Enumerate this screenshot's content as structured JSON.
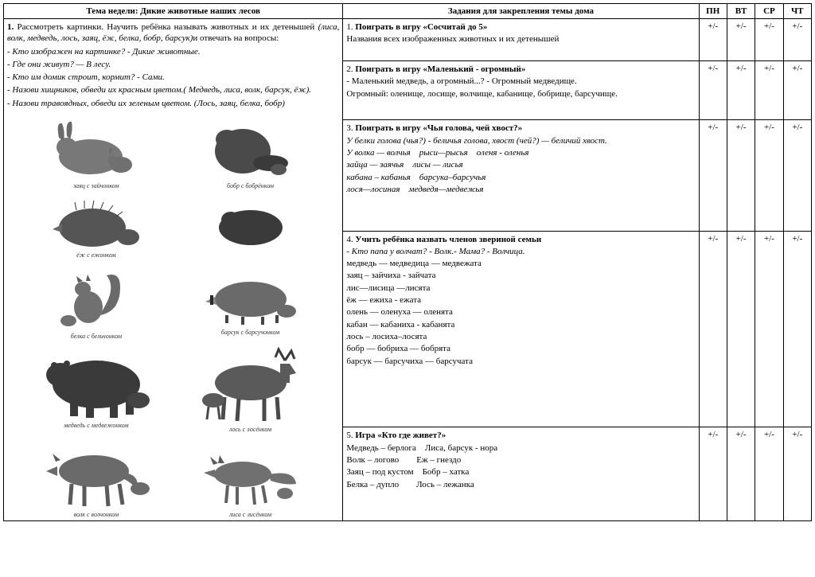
{
  "header": {
    "topic_col": "Тема недели: Дикие животные наших лесов",
    "tasks_col": "Задания для закрепления темы дома",
    "days": [
      "ПН",
      "ВТ",
      "СР",
      "ЧТ"
    ]
  },
  "left": {
    "intro_num": "1.",
    "intro_text": "Рассмотреть картинки. Научить ребёнка называть животных и их детенышей",
    "intro_paren": "(лиса, волк, медведь, лось, заяц, ёж, белка, бобр, барсук)",
    "intro_tail": "и отвечать на вопросы:",
    "q1": "- Кто изображен на картинке? - Дикие животные.",
    "q2": "- Где они живут? — В лесу.",
    "q3": "- Кто им домик строит, кормит? - Сами.",
    "q4": "- Назови хищников, обведи их красным цветом.( Медведь, лиса, волк, барсук, ёж).",
    "q5": "- Назови травоядных, обведи их зеленым цветом. (Лось, заяц, белка, бобр)"
  },
  "animals": {
    "captions": [
      "заяц с зайчонком",
      "бобр с бобрёнком",
      "ёж с ежонком",
      "",
      "белка с бельчонком",
      "барсук с барсучонком",
      "медведь с медвежонком",
      "лось с лосёнком",
      "волк с волчонком",
      "лиса с лисёнком"
    ]
  },
  "tasks": [
    {
      "title_num": "1.",
      "title": "Поиграть в игру «Сосчитай до 5»",
      "body": "Названия всех изображенных животных и их детенышей",
      "marks": [
        "+/-",
        "+/-",
        "+/-",
        "+/-"
      ]
    },
    {
      "title_num": "2.",
      "title": "Поиграть в игру «Маленький - огромный»",
      "body": "- Маленький медведь, а огромный...? - Огромный медведище.\nОгромный: оленище, лосище, волчище, кабанище, бобрище, барсучище.",
      "marks": [
        "+/-",
        "+/-",
        "+/-",
        "+/-"
      ]
    },
    {
      "title_num": "3.",
      "title": "Поиграть в игру «Чья голова, чей хвост?»",
      "body_italic1": "У белки голова (чья?) - беличья голова, хвост (чей?) — беличий хвост.",
      "body_italic2": "У волка — волчья рыси—рысья оленя - оленья\nзайца — заячья лисы — лисья\nкабана – кабанья барсука–барсучья\nлося—лосиная медведя—медвежья",
      "marks": [
        "+/-",
        "+/-",
        "+/-",
        "+/-"
      ]
    },
    {
      "title_num": "4.",
      "title": "Учить ребёнка назвать членов звериной семьи",
      "body_italic": "- Кто папа у волчат? - Волк.- Мама? - Волчица.",
      "body": "медведь — медведица — медвежата\nзаяц – зайчиха - зайчата\nлис—лисица —лисята\n ёж — ежиха - ежата\nолень — оленуха — оленята\nкабан — кабаниха - кабанята\nлось – лосиха–лосята\nбобр — бобриха — бобрята\nбарсук — барсучиха — барсучата",
      "marks": [
        "+/-",
        "+/-",
        "+/-",
        "+/-"
      ]
    },
    {
      "title_num": "5.",
      "title": "Игра «Кто где живет?»",
      "body": "Медведь – берлога Лиса, барсук - нора\nВолк – логово  Еж – гнездо\nЗаяц – под кустом Бобр – хатка\nБелка – дупло  Лось – лежанка",
      "marks": [
        "+/-",
        "+/-",
        "+/-",
        "+/-"
      ]
    }
  ],
  "svg": {
    "fill": "#6b6b6b",
    "stroke": "#2a2a2a"
  }
}
